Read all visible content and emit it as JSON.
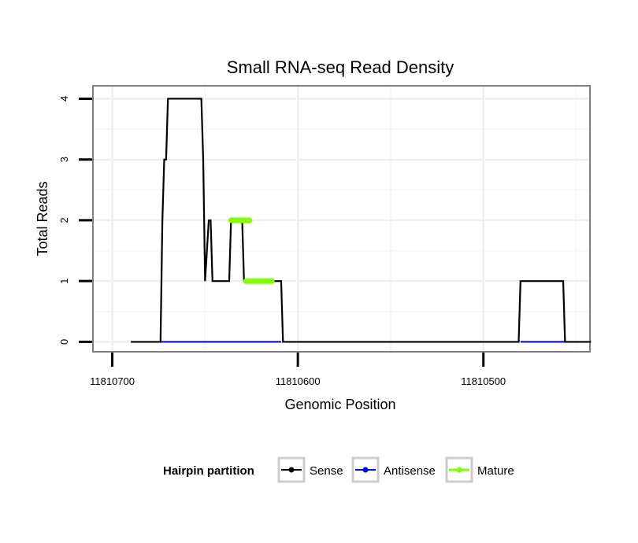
{
  "chart_data": {
    "type": "line",
    "title": "Small RNA-seq Read Density",
    "xlabel": "Genomic Position",
    "ylabel": "Total Reads",
    "x_reversed": true,
    "xlim": [
      11810710,
      11810443
    ],
    "ylim": [
      -0.15,
      4.2
    ],
    "x_ticks": [
      11810700,
      11810600,
      11810500
    ],
    "x_tick_labels": [
      "11810700",
      "11810600",
      "11810500"
    ],
    "y_ticks": [
      0,
      1,
      2,
      3,
      4
    ],
    "y_tick_labels": [
      "0",
      "1",
      "2",
      "3",
      "4"
    ],
    "grid": true,
    "legend": {
      "title": "Hairpin partition",
      "position": "bottom",
      "entries": [
        "Sense",
        "Antisense",
        "Mature"
      ]
    },
    "series": [
      {
        "name": "Sense",
        "color": "#000000",
        "x": [
          11810690,
          11810674,
          11810673,
          11810672,
          11810671,
          11810670,
          11810669,
          11810652,
          11810651,
          11810650,
          11810648,
          11810647,
          11810646,
          11810637,
          11810636,
          11810630,
          11810629,
          11810619,
          11810618,
          11810609,
          11810608,
          11810481,
          11810480,
          11810457,
          11810456,
          11810442
        ],
        "y": [
          0,
          0,
          2,
          3,
          3,
          4,
          4,
          4,
          3,
          1,
          2,
          2,
          1,
          1,
          2,
          2,
          1,
          1,
          1,
          1,
          0,
          0,
          1,
          1,
          0,
          0
        ]
      },
      {
        "name": "Antisense",
        "color": "#0000ff",
        "x": [
          11810674,
          11810609
        ],
        "y": [
          0,
          0
        ],
        "x2": [
          11810480,
          11810456
        ],
        "y2": [
          0,
          0
        ]
      },
      {
        "name": "Mature",
        "color": "#7fff00",
        "segments": [
          {
            "x": [
              11810636,
              11810626
            ],
            "y": [
              2,
              2
            ]
          },
          {
            "x": [
              11810628,
              11810614
            ],
            "y": [
              1,
              1
            ]
          }
        ]
      }
    ]
  }
}
